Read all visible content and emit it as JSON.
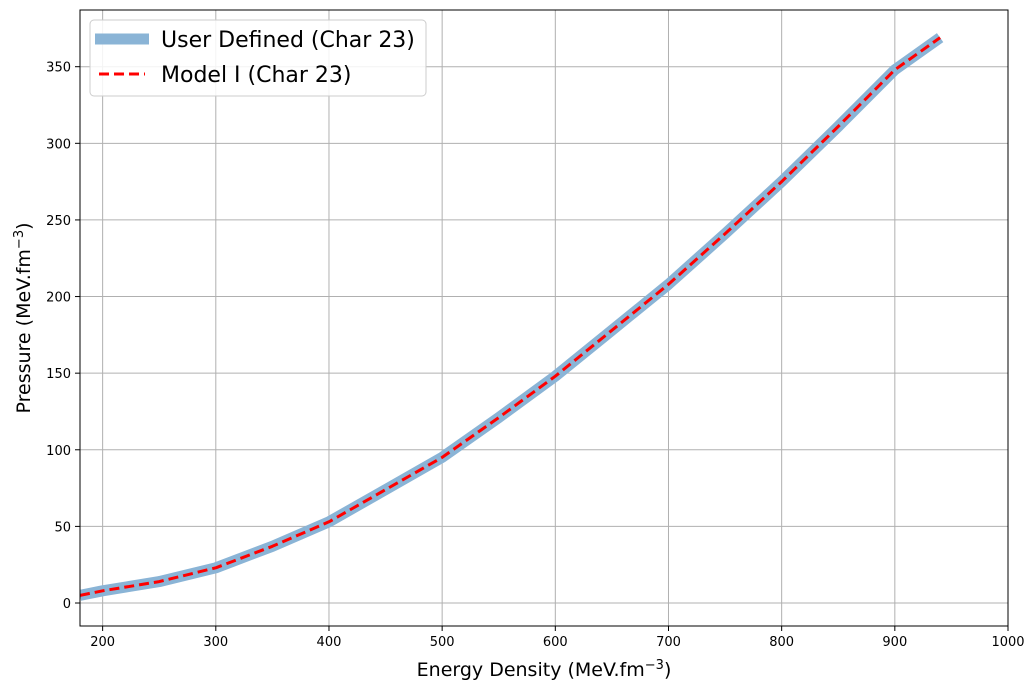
{
  "chart_data": {
    "type": "line",
    "title": "",
    "xlabel": "Energy Density (MeV.fm",
    "xlabel_sup": "−3",
    "xlabel_end": ")",
    "ylabel": "Pressure (MeV.fm",
    "ylabel_sup": "−3",
    "ylabel_end": ")",
    "xlim": [
      180,
      1000
    ],
    "ylim": [
      -15,
      387
    ],
    "xticks": [
      200,
      300,
      400,
      500,
      600,
      700,
      800,
      900,
      1000
    ],
    "yticks": [
      0,
      50,
      100,
      150,
      200,
      250,
      300,
      350
    ],
    "grid": true,
    "legend_position": "top-left",
    "series": [
      {
        "name": "User Defined (Char 23)",
        "style": "solid-thick",
        "color": "#8ab4d6",
        "x": [
          180,
          200,
          250,
          300,
          350,
          400,
          450,
          500,
          550,
          600,
          650,
          700,
          750,
          800,
          850,
          900,
          940
        ],
        "y": [
          5,
          8,
          14,
          23,
          37,
          53,
          74,
          95,
          121,
          148,
          178,
          208,
          241,
          275,
          311,
          348,
          369
        ]
      },
      {
        "name": "Model I (Char 23)",
        "style": "dashed",
        "color": "#ff0000",
        "x": [
          180,
          200,
          250,
          300,
          350,
          400,
          450,
          500,
          550,
          600,
          650,
          700,
          750,
          800,
          850,
          900,
          940
        ],
        "y": [
          5,
          8,
          14,
          23,
          37,
          53,
          74,
          95,
          121,
          148,
          178,
          208,
          241,
          275,
          311,
          348,
          369
        ]
      }
    ]
  }
}
